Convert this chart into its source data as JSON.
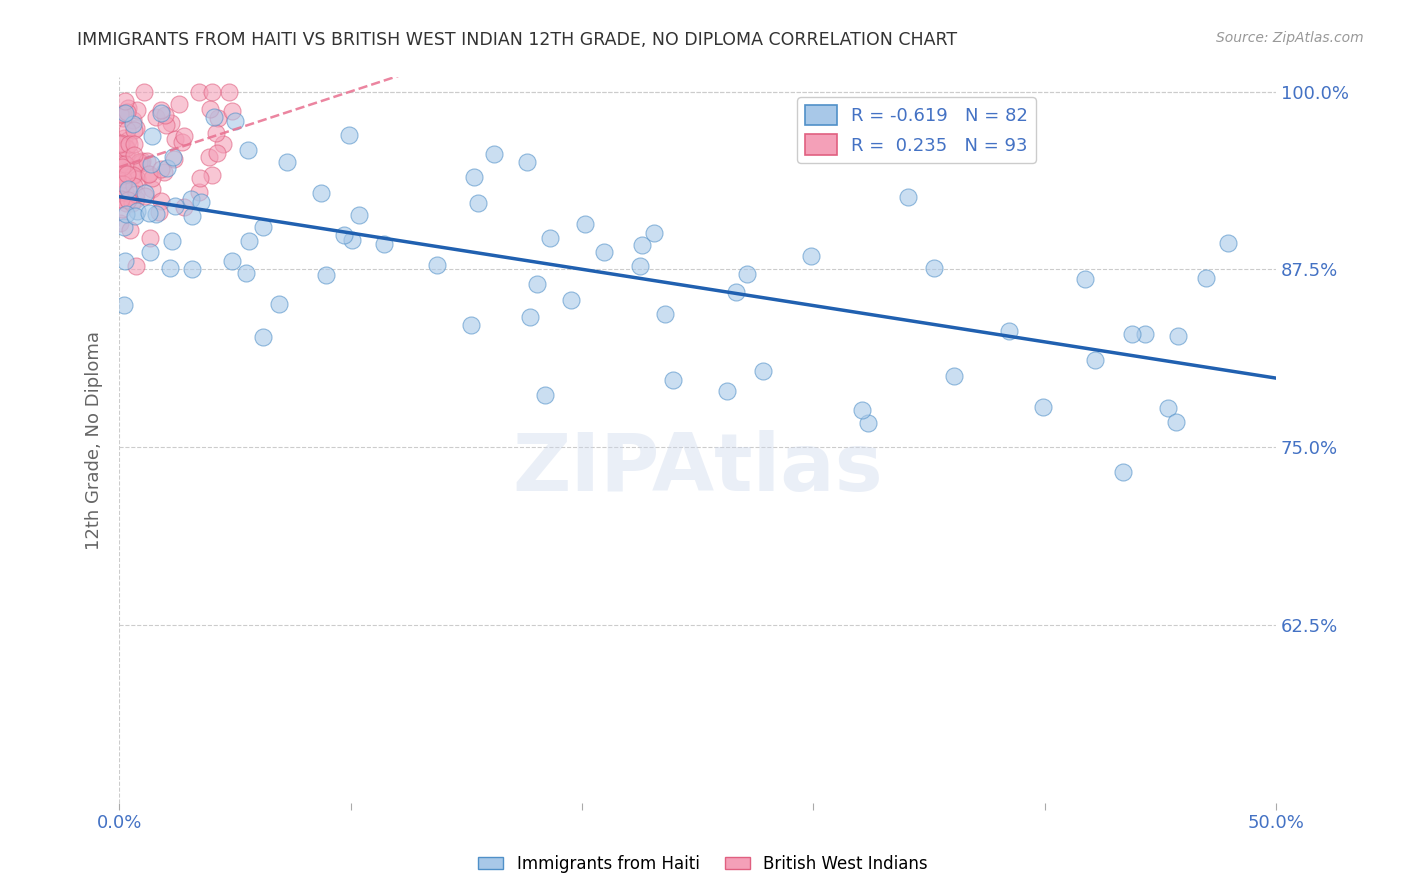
{
  "title": "IMMIGRANTS FROM HAITI VS BRITISH WEST INDIAN 12TH GRADE, NO DIPLOMA CORRELATION CHART",
  "source": "Source: ZipAtlas.com",
  "ylabel_label": "12th Grade, No Diploma",
  "xlim": [
    0.0,
    0.5
  ],
  "ylim": [
    0.5,
    1.01
  ],
  "yticks": [
    1.0,
    0.875,
    0.75,
    0.625
  ],
  "ytick_labels_right": [
    "100.0%",
    "87.5%",
    "75.0%",
    "62.5%"
  ],
  "xticks": [
    0.0,
    0.1,
    0.2,
    0.3,
    0.4,
    0.5
  ],
  "xtick_labels": [
    "0.0%",
    "",
    "",
    "",
    "",
    "50.0%"
  ],
  "haiti_color": "#a8c8e8",
  "bwi_color": "#f4a0b8",
  "haiti_edge_color": "#5090c8",
  "bwi_edge_color": "#e06080",
  "haiti_line_color": "#2060b0",
  "bwi_line_color": "#e87090",
  "watermark": "ZIPAtlas",
  "background_color": "#ffffff",
  "grid_color": "#cccccc",
  "title_color": "#333333",
  "axis_label_color": "#666666",
  "tick_label_color": "#4472c4",
  "legend1_label": "R = -0.619   N = 82",
  "legend2_label": "R =  0.235   N = 93",
  "bottom_label1": "Immigrants from Haiti",
  "bottom_label2": "British West Indians",
  "haiti_seed": 77,
  "bwi_seed": 42
}
